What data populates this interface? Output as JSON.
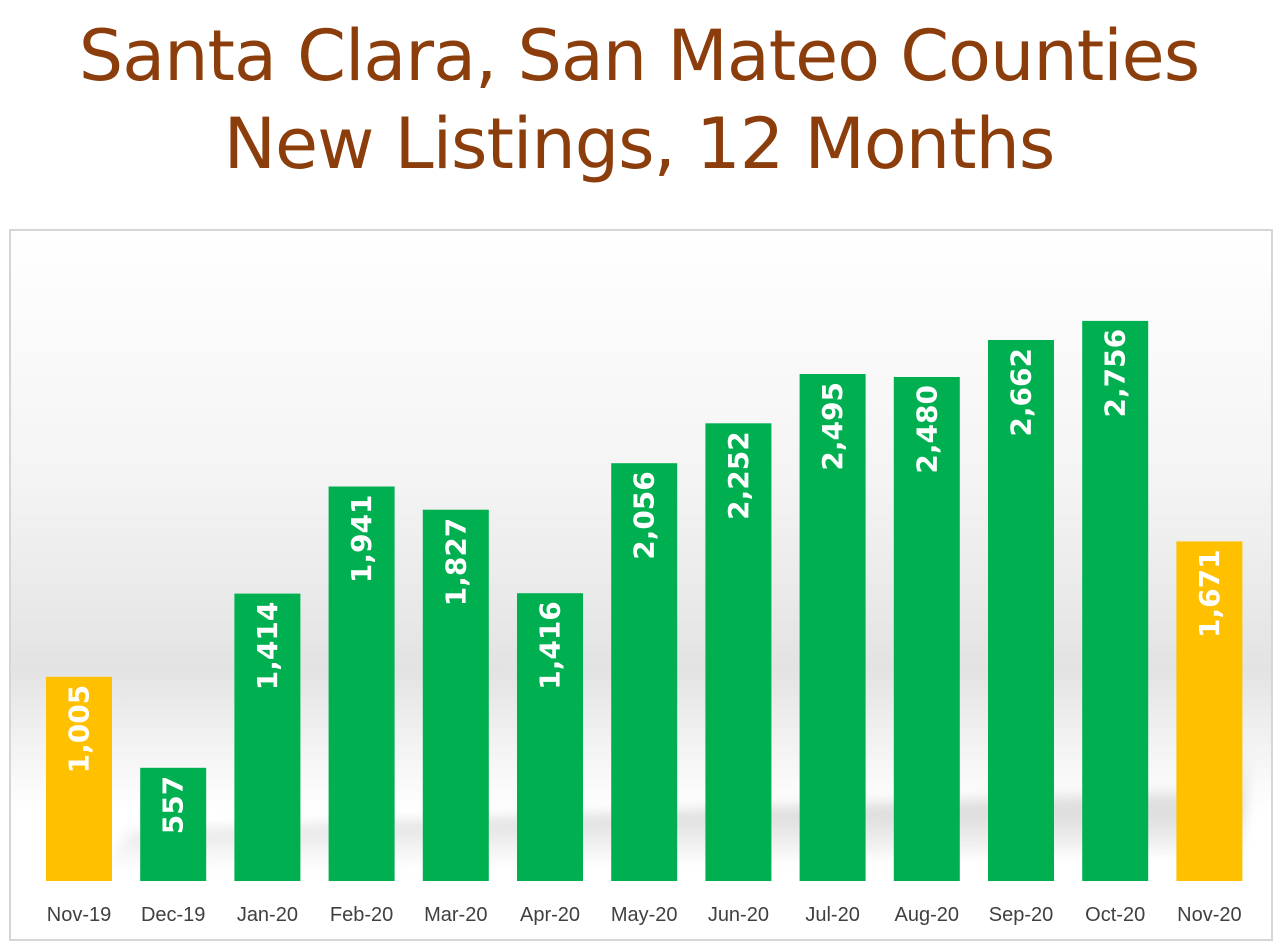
{
  "chart_data": {
    "type": "bar",
    "title": "Santa Clara, San Mateo Counties",
    "subtitle": "New Listings, 12 Months",
    "xlabel": "",
    "ylabel": "",
    "categories": [
      "Nov-19",
      "Dec-19",
      "Jan-20",
      "Feb-20",
      "Mar-20",
      "Apr-20",
      "May-20",
      "Jun-20",
      "Jul-20",
      "Aug-20",
      "Sep-20",
      "Oct-20",
      "Nov-20"
    ],
    "values": [
      1005,
      557,
      1414,
      1941,
      1827,
      1416,
      2056,
      2252,
      2495,
      2480,
      2662,
      2756,
      1671
    ],
    "value_labels": [
      "1,005",
      "557",
      "1,414",
      "1,941",
      "1,827",
      "1,416",
      "2,056",
      "2,252",
      "2,495",
      "2,480",
      "2,662",
      "2,756",
      "1,671"
    ],
    "ylim": [
      0,
      3100
    ],
    "grid": false,
    "legend": "none",
    "data_labels": "inside-end, rotated vertical",
    "colors": {
      "title": "#8B3E0C",
      "bar": "#00B050",
      "highlight_bar": "#FFC000",
      "label": "#FFFFFF",
      "axis_text": "#404040"
    },
    "highlighted_categories": [
      "Nov-19",
      "Nov-20"
    ]
  }
}
